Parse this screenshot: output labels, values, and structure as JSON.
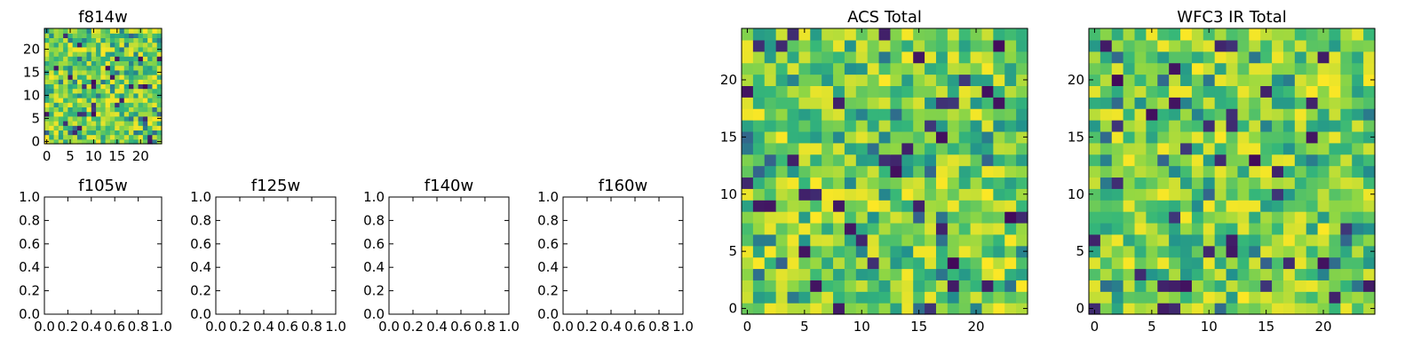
{
  "chart_data": [
    {
      "type": "heatmap",
      "title": "f814w",
      "grid_size": 25,
      "colormap": "viridis",
      "xticks": [
        "0",
        "5",
        "10",
        "15",
        "20"
      ],
      "yticks": [
        "0",
        "5",
        "10",
        "15",
        "20"
      ],
      "xlim": [
        -0.5,
        24.5
      ],
      "ylim": [
        -0.5,
        24.5
      ]
    },
    {
      "type": "scatter",
      "title": "f105w",
      "xticks": [
        "0.0",
        "0.2",
        "0.4",
        "0.6",
        "0.8",
        "1.0"
      ],
      "yticks": [
        "0.0",
        "0.2",
        "0.4",
        "0.6",
        "0.8",
        "1.0"
      ],
      "xlim": [
        0,
        1
      ],
      "ylim": [
        0,
        1
      ],
      "values": []
    },
    {
      "type": "scatter",
      "title": "f125w",
      "xticks": [
        "0.0",
        "0.2",
        "0.4",
        "0.6",
        "0.8",
        "1.0"
      ],
      "yticks": [
        "0.0",
        "0.2",
        "0.4",
        "0.6",
        "0.8",
        "1.0"
      ],
      "xlim": [
        0,
        1
      ],
      "ylim": [
        0,
        1
      ],
      "values": []
    },
    {
      "type": "scatter",
      "title": "f140w",
      "xticks": [
        "0.0",
        "0.2",
        "0.4",
        "0.6",
        "0.8",
        "1.0"
      ],
      "yticks": [
        "0.0",
        "0.2",
        "0.4",
        "0.6",
        "0.8",
        "1.0"
      ],
      "xlim": [
        0,
        1
      ],
      "ylim": [
        0,
        1
      ],
      "values": []
    },
    {
      "type": "scatter",
      "title": "f160w",
      "xticks": [
        "0.0",
        "0.2",
        "0.4",
        "0.6",
        "0.8",
        "1.0"
      ],
      "yticks": [
        "0.0",
        "0.2",
        "0.4",
        "0.6",
        "0.8",
        "1.0"
      ],
      "xlim": [
        0,
        1
      ],
      "ylim": [
        0,
        1
      ],
      "values": []
    },
    {
      "type": "heatmap",
      "title": "ACS Total",
      "grid_size": 25,
      "colormap": "viridis",
      "xticks": [
        "0",
        "5",
        "10",
        "15",
        "20"
      ],
      "yticks": [
        "0",
        "5",
        "10",
        "15",
        "20"
      ],
      "xlim": [
        -0.5,
        24.5
      ],
      "ylim": [
        -0.5,
        24.5
      ]
    },
    {
      "type": "heatmap",
      "title": "WFC3 IR Total",
      "grid_size": 25,
      "colormap": "viridis",
      "xticks": [
        "0",
        "5",
        "10",
        "15",
        "20"
      ],
      "yticks": [
        "0",
        "5",
        "10",
        "15",
        "20"
      ],
      "xlim": [
        -0.5,
        24.5
      ],
      "ylim": [
        -0.5,
        24.5
      ]
    }
  ]
}
